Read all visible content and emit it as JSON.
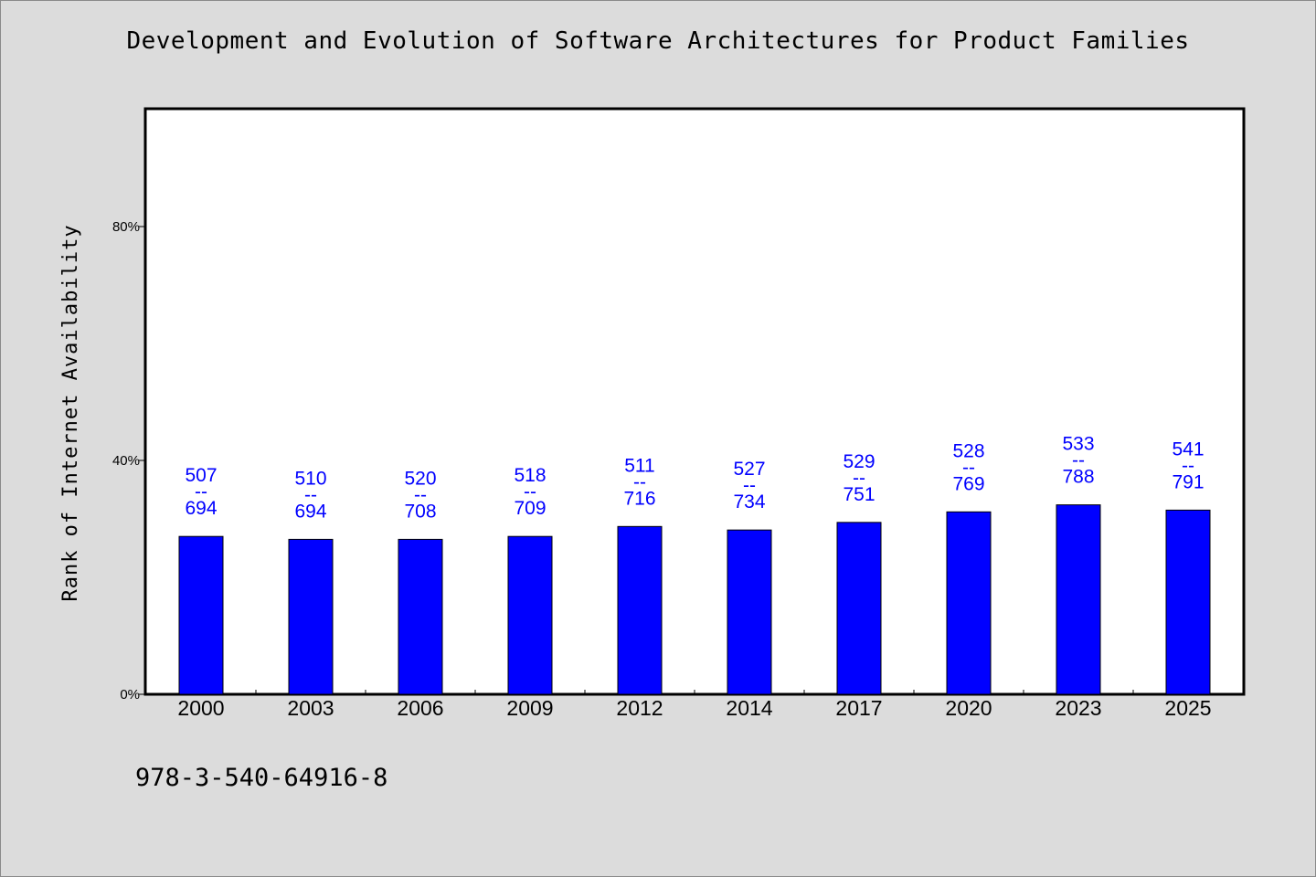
{
  "title": "Development and Evolution of Software Architectures for Product Families",
  "footer_text": "978-3-540-64916-8",
  "colors": {
    "bar": "#0000ff",
    "label": "#0000ff",
    "background": "#dcdcdc",
    "plot_background": "#ffffff"
  },
  "chart_data": {
    "type": "bar",
    "title": "Development and Evolution of Software Architectures for Product Families",
    "xlabel": "",
    "ylabel": "Rank of Internet Availability",
    "ylim": [
      0,
      100
    ],
    "yticks": [
      0,
      40,
      80
    ],
    "ytick_labels": [
      "0%",
      "40%",
      "80%"
    ],
    "grid": false,
    "categories": [
      "2000",
      "2003",
      "2006",
      "2009",
      "2012",
      "2014",
      "2017",
      "2020",
      "2023",
      "2025"
    ],
    "values": [
      27,
      26.5,
      26.5,
      27,
      28.7,
      28.1,
      29.4,
      31.2,
      32.4,
      31.5
    ],
    "data_labels": [
      {
        "top": "507",
        "mid": "--",
        "bottom": "694"
      },
      {
        "top": "510",
        "mid": "--",
        "bottom": "694"
      },
      {
        "top": "520",
        "mid": "--",
        "bottom": "708"
      },
      {
        "top": "518",
        "mid": "--",
        "bottom": "709"
      },
      {
        "top": "511",
        "mid": "--",
        "bottom": "716"
      },
      {
        "top": "527",
        "mid": "--",
        "bottom": "734"
      },
      {
        "top": "529",
        "mid": "--",
        "bottom": "751"
      },
      {
        "top": "528",
        "mid": "--",
        "bottom": "769"
      },
      {
        "top": "533",
        "mid": "--",
        "bottom": "788"
      },
      {
        "top": "541",
        "mid": "--",
        "bottom": "791"
      }
    ]
  }
}
